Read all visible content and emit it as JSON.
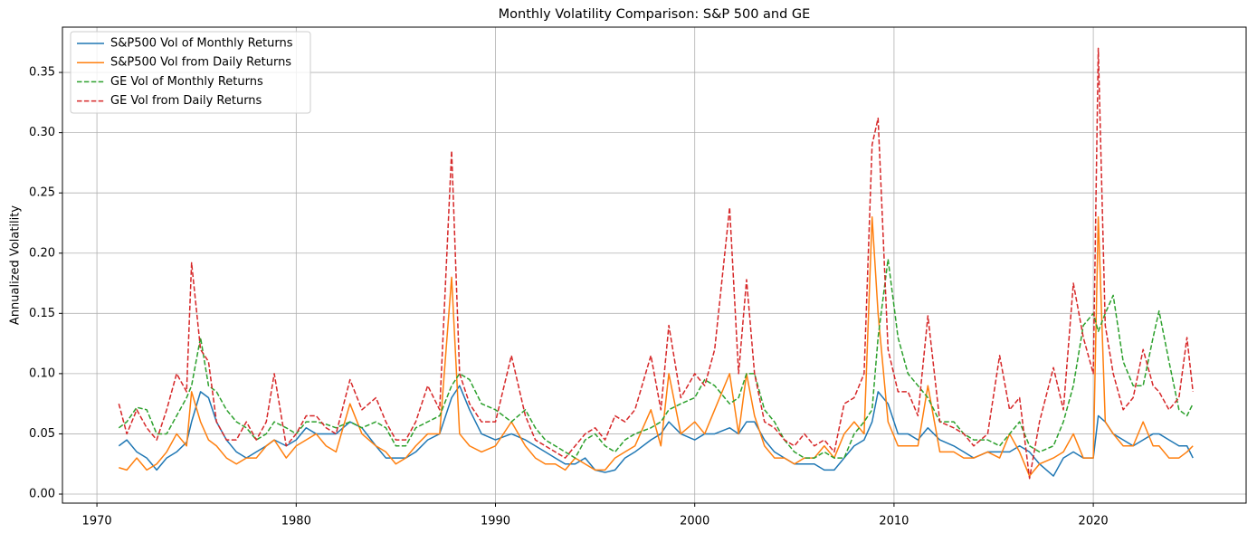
{
  "chart_data": {
    "type": "line",
    "title": "Monthly Volatility Comparison: S&P 500 and GE",
    "y_label": "Annualized Volatility",
    "grid": true,
    "legend": "upper-left",
    "xlim": [
      1968.27,
      2027.67
    ],
    "ylim": [
      -0.0075,
      0.3876
    ],
    "xticks": [
      1970,
      1980,
      1990,
      2000,
      2010,
      2020
    ],
    "yticks": [
      {
        "value": 0,
        "label": "0.00"
      },
      {
        "value": 0.05,
        "label": "0.05"
      },
      {
        "value": 0.1,
        "label": "0.10"
      },
      {
        "value": 0.15,
        "label": "0.15"
      },
      {
        "value": 0.2,
        "label": "0.20"
      },
      {
        "value": 0.25,
        "label": "0.25"
      },
      {
        "value": 0.3,
        "label": "0.30"
      },
      {
        "value": 0.35,
        "label": "0.35"
      }
    ],
    "x": [
      1971.1,
      1971.5,
      1972,
      1972.5,
      1973,
      1973.5,
      1974,
      1974.5,
      1974.75,
      1975.2,
      1975.6,
      1976,
      1976.5,
      1977,
      1977.5,
      1978,
      1978.5,
      1978.9,
      1979.5,
      1980,
      1980.5,
      1981,
      1981.5,
      1982,
      1982.7,
      1983.3,
      1984,
      1984.5,
      1985,
      1985.5,
      1986,
      1986.6,
      1987.2,
      1987.8,
      1988.2,
      1988.7,
      1989.3,
      1990,
      1990.8,
      1991.5,
      1992,
      1992.5,
      1993,
      1993.5,
      1994,
      1994.5,
      1995,
      1995.5,
      1996,
      1996.5,
      1997,
      1997.8,
      1998.3,
      1998.7,
      1999.3,
      2000,
      2000.5,
      2001,
      2001.75,
      2002.2,
      2002.6,
      2003,
      2003.5,
      2004,
      2004.5,
      2005,
      2005.5,
      2006,
      2006.5,
      2007,
      2007.5,
      2008,
      2008.5,
      2008.9,
      2009.2,
      2009.7,
      2010.2,
      2010.7,
      2011.2,
      2011.7,
      2012.3,
      2013,
      2013.5,
      2014,
      2014.7,
      2015.3,
      2015.8,
      2016.3,
      2016.8,
      2017.3,
      2018,
      2018.5,
      2019,
      2019.5,
      2020,
      2020.25,
      2020.6,
      2021,
      2021.5,
      2022,
      2022.5,
      2023,
      2023.3,
      2023.8,
      2024.3,
      2024.7,
      2025
    ],
    "series": [
      {
        "name": "S&P500 Vol of Monthly Returns",
        "color": "#1f77b4",
        "dashed": false,
        "values": [
          0.04,
          0.045,
          0.035,
          0.03,
          0.02,
          0.03,
          0.035,
          0.043,
          0.06,
          0.085,
          0.08,
          0.06,
          0.045,
          0.035,
          0.03,
          0.035,
          0.04,
          0.045,
          0.04,
          0.045,
          0.055,
          0.05,
          0.05,
          0.05,
          0.06,
          0.055,
          0.04,
          0.03,
          0.03,
          0.03,
          0.035,
          0.045,
          0.05,
          0.08,
          0.09,
          0.07,
          0.05,
          0.045,
          0.05,
          0.045,
          0.04,
          0.035,
          0.03,
          0.025,
          0.025,
          0.03,
          0.02,
          0.018,
          0.02,
          0.03,
          0.035,
          0.045,
          0.05,
          0.06,
          0.05,
          0.045,
          0.05,
          0.05,
          0.055,
          0.05,
          0.06,
          0.06,
          0.045,
          0.035,
          0.03,
          0.025,
          0.025,
          0.025,
          0.02,
          0.02,
          0.03,
          0.04,
          0.045,
          0.06,
          0.085,
          0.075,
          0.05,
          0.05,
          0.045,
          0.055,
          0.045,
          0.04,
          0.035,
          0.03,
          0.035,
          0.035,
          0.035,
          0.04,
          0.035,
          0.025,
          0.015,
          0.03,
          0.035,
          0.03,
          0.03,
          0.065,
          0.06,
          0.05,
          0.045,
          0.04,
          0.045,
          0.05,
          0.05,
          0.045,
          0.04,
          0.04,
          0.03
        ]
      },
      {
        "name": "S&P500 Vol from Daily Returns",
        "color": "#ff7f0e",
        "dashed": false,
        "values": [
          0.022,
          0.02,
          0.03,
          0.02,
          0.025,
          0.035,
          0.05,
          0.04,
          0.085,
          0.06,
          0.045,
          0.04,
          0.03,
          0.025,
          0.03,
          0.03,
          0.04,
          0.045,
          0.03,
          0.04,
          0.045,
          0.05,
          0.04,
          0.035,
          0.075,
          0.05,
          0.04,
          0.035,
          0.025,
          0.03,
          0.04,
          0.05,
          0.05,
          0.18,
          0.05,
          0.04,
          0.035,
          0.04,
          0.06,
          0.04,
          0.03,
          0.025,
          0.025,
          0.02,
          0.03,
          0.025,
          0.02,
          0.02,
          0.03,
          0.035,
          0.04,
          0.07,
          0.04,
          0.1,
          0.05,
          0.06,
          0.05,
          0.07,
          0.1,
          0.05,
          0.1,
          0.065,
          0.04,
          0.03,
          0.03,
          0.025,
          0.03,
          0.03,
          0.04,
          0.03,
          0.05,
          0.06,
          0.05,
          0.23,
          0.15,
          0.06,
          0.04,
          0.04,
          0.04,
          0.09,
          0.035,
          0.035,
          0.03,
          0.03,
          0.035,
          0.03,
          0.05,
          0.035,
          0.015,
          0.025,
          0.03,
          0.035,
          0.05,
          0.03,
          0.03,
          0.23,
          0.06,
          0.05,
          0.04,
          0.04,
          0.06,
          0.04,
          0.04,
          0.03,
          0.03,
          0.035,
          0.04
        ]
      },
      {
        "name": "GE Vol of Monthly Returns",
        "color": "#2ca02c",
        "dashed": true,
        "values": [
          0.055,
          0.06,
          0.072,
          0.07,
          0.05,
          0.05,
          0.065,
          0.08,
          0.09,
          0.13,
          0.09,
          0.085,
          0.07,
          0.06,
          0.055,
          0.045,
          0.05,
          0.06,
          0.055,
          0.05,
          0.06,
          0.06,
          0.058,
          0.055,
          0.06,
          0.055,
          0.06,
          0.055,
          0.04,
          0.04,
          0.055,
          0.06,
          0.065,
          0.09,
          0.1,
          0.095,
          0.075,
          0.07,
          0.06,
          0.07,
          0.055,
          0.045,
          0.04,
          0.035,
          0.03,
          0.045,
          0.05,
          0.04,
          0.035,
          0.045,
          0.05,
          0.055,
          0.06,
          0.07,
          0.075,
          0.08,
          0.095,
          0.09,
          0.075,
          0.08,
          0.1,
          0.1,
          0.07,
          0.06,
          0.045,
          0.035,
          0.03,
          0.03,
          0.035,
          0.03,
          0.03,
          0.05,
          0.06,
          0.07,
          0.13,
          0.195,
          0.13,
          0.1,
          0.09,
          0.08,
          0.06,
          0.06,
          0.05,
          0.045,
          0.045,
          0.04,
          0.05,
          0.06,
          0.04,
          0.035,
          0.04,
          0.06,
          0.09,
          0.14,
          0.15,
          0.135,
          0.15,
          0.165,
          0.11,
          0.09,
          0.09,
          0.13,
          0.152,
          0.11,
          0.07,
          0.065,
          0.075
        ]
      },
      {
        "name": "GE Vol from Daily Returns",
        "color": "#d62728",
        "dashed": true,
        "values": [
          0.075,
          0.05,
          0.07,
          0.055,
          0.045,
          0.07,
          0.1,
          0.085,
          0.192,
          0.12,
          0.11,
          0.06,
          0.045,
          0.045,
          0.06,
          0.045,
          0.06,
          0.1,
          0.04,
          0.05,
          0.065,
          0.065,
          0.055,
          0.05,
          0.095,
          0.07,
          0.08,
          0.06,
          0.045,
          0.045,
          0.06,
          0.09,
          0.07,
          0.285,
          0.1,
          0.075,
          0.06,
          0.06,
          0.115,
          0.065,
          0.045,
          0.04,
          0.035,
          0.03,
          0.04,
          0.05,
          0.055,
          0.045,
          0.065,
          0.06,
          0.07,
          0.115,
          0.07,
          0.14,
          0.08,
          0.1,
          0.09,
          0.12,
          0.238,
          0.1,
          0.178,
          0.1,
          0.06,
          0.055,
          0.045,
          0.04,
          0.05,
          0.04,
          0.045,
          0.035,
          0.075,
          0.08,
          0.1,
          0.29,
          0.312,
          0.12,
          0.085,
          0.085,
          0.065,
          0.148,
          0.06,
          0.055,
          0.05,
          0.04,
          0.05,
          0.115,
          0.07,
          0.08,
          0.013,
          0.06,
          0.105,
          0.07,
          0.175,
          0.13,
          0.1,
          0.37,
          0.14,
          0.1,
          0.07,
          0.08,
          0.12,
          0.09,
          0.085,
          0.07,
          0.08,
          0.13,
          0.085
        ]
      }
    ]
  }
}
